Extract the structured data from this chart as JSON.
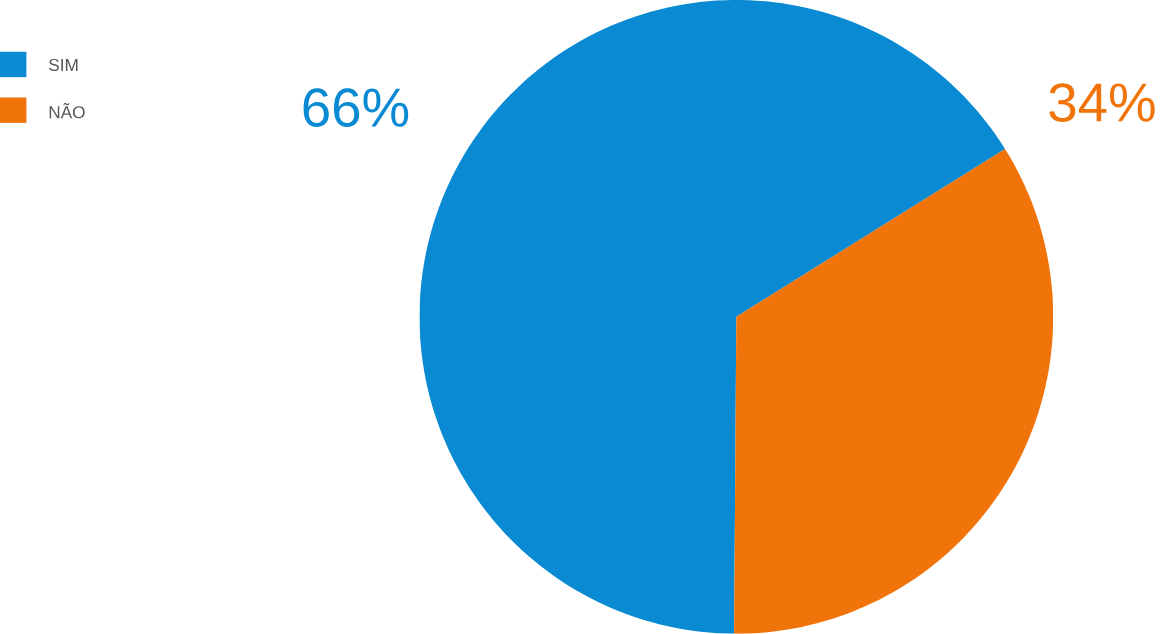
{
  "chart_data": {
    "type": "pie",
    "categories": [
      "SIM",
      "NÃO"
    ],
    "values": [
      66,
      34
    ],
    "colors": [
      "#0a8ad2",
      "#f07409"
    ],
    "value_labels": [
      "66%",
      "34%"
    ],
    "legend": "top left"
  }
}
